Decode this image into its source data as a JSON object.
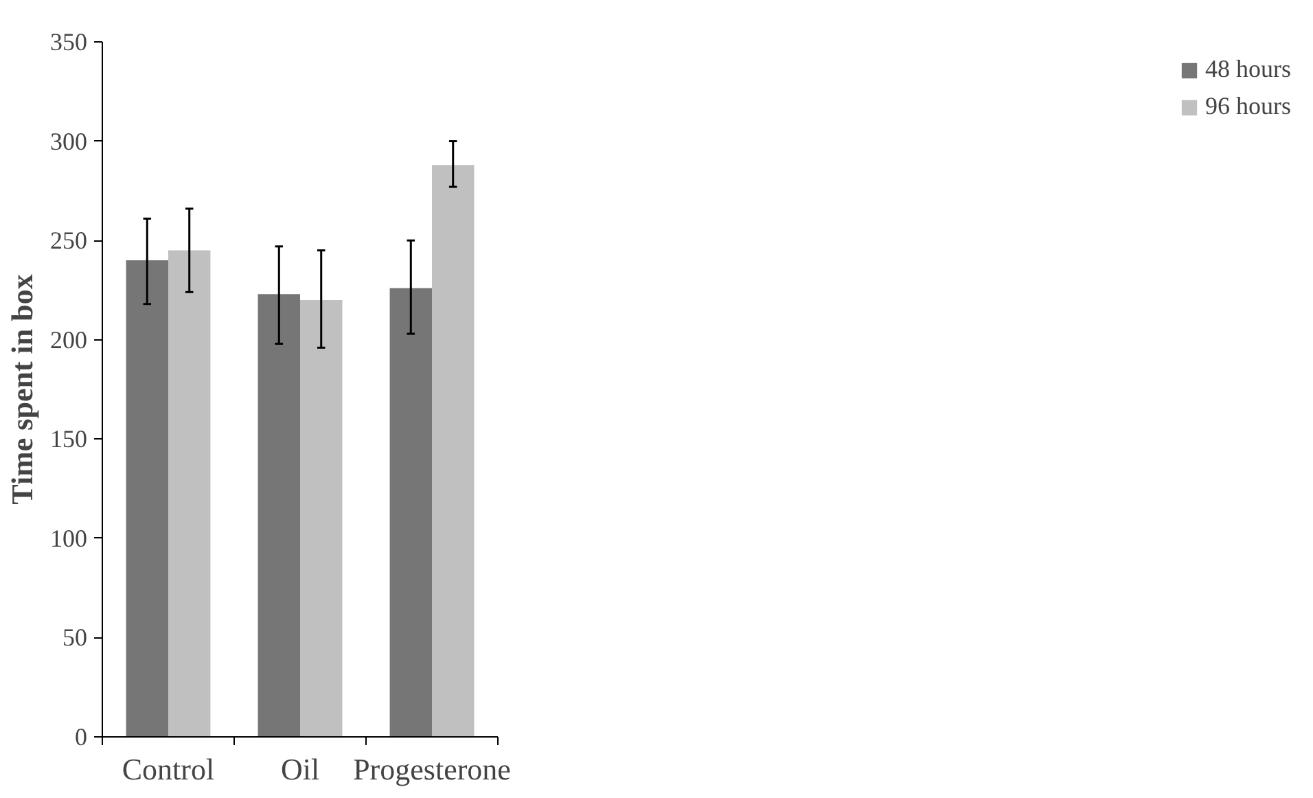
{
  "chart_data": {
    "type": "bar",
    "ylabel": "Time spent in box",
    "categories": [
      "Control",
      "Oil",
      "Progesterone"
    ],
    "series": [
      {
        "name": "48 hours",
        "color": "#767676",
        "values": [
          240,
          223,
          226
        ],
        "errors": [
          [
            218,
            261
          ],
          [
            198,
            247
          ],
          [
            203,
            250
          ]
        ]
      },
      {
        "name": "96 hours",
        "color": "#c0c0c0",
        "values": [
          245,
          220,
          288
        ],
        "errors": [
          [
            224,
            266
          ],
          [
            196,
            245
          ],
          [
            277,
            300
          ]
        ]
      }
    ],
    "ylim": [
      0,
      350
    ],
    "yticks": [
      0,
      50,
      100,
      150,
      200,
      250,
      300,
      350
    ],
    "grid": false,
    "legend": "right"
  }
}
